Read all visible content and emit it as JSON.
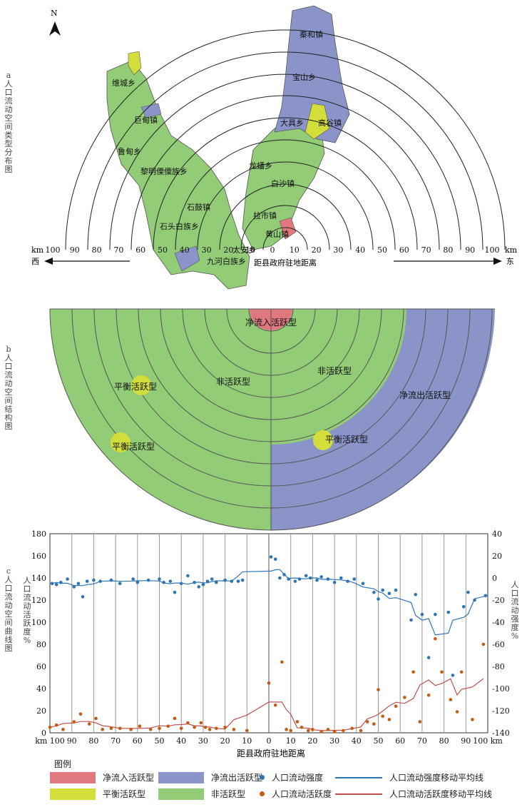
{
  "panel_a": {
    "title": "a 人口流动空间类型分布图",
    "north": "N",
    "km_left": "km",
    "km_right": "km",
    "west": "西",
    "east": "东",
    "axis_label": "距县政府驻地距离",
    "ticks": [
      "100",
      "90",
      "80",
      "70",
      "60",
      "50",
      "40",
      "30",
      "20",
      "10",
      "0",
      "10",
      "20",
      "30",
      "40",
      "50",
      "60",
      "70",
      "80",
      "90",
      "100"
    ],
    "towns": [
      {
        "name": "秦和镇"
      },
      {
        "name": "宝山乡"
      },
      {
        "name": "高谷镇"
      },
      {
        "name": "大具乡"
      },
      {
        "name": "维城乡"
      },
      {
        "name": "巨甸镇"
      },
      {
        "name": "鲁甸乡"
      },
      {
        "name": "黎明傈僳族乡"
      },
      {
        "name": "龙蟠乡"
      },
      {
        "name": "石鼓镇"
      },
      {
        "name": "拉市镇"
      },
      {
        "name": "白沙镇"
      },
      {
        "name": "石头白族乡"
      },
      {
        "name": "九河白族乡"
      },
      {
        "name": "太安乡"
      },
      {
        "name": "黄山镇"
      }
    ]
  },
  "panel_b": {
    "title": "b 人口流动空间结构图",
    "labels": {
      "inflow": "净流入活跃型",
      "inactive_left": "非活跃型",
      "inactive_right": "非活跃型",
      "outflow": "净流出活跃型",
      "balance_1": "平衡活跃型",
      "balance_2": "平衡活跃型",
      "balance_3": "平衡活跃型"
    }
  },
  "panel_c": {
    "title": "c 人口流动空间曲线图",
    "left_axis_label": "人口流动活跃度 %",
    "right_axis_label": "人口流动强度 %",
    "x_label": "距县政府驻地距离",
    "km": "km"
  },
  "chart_data": {
    "type": "scatter",
    "x_label": "距县政府驻地距离",
    "x_ticks": [
      "km 100",
      "90",
      "80",
      "70",
      "60",
      "50",
      "40",
      "30",
      "20",
      "10",
      "0",
      "10",
      "20",
      "30",
      "40",
      "50",
      "60",
      "70",
      "80",
      "90",
      "100 km"
    ],
    "left_axis": {
      "label": "人口流动活跃度 %",
      "range": [
        0,
        180
      ],
      "ticks": [
        0,
        20,
        40,
        60,
        80,
        100,
        120,
        140,
        160,
        180
      ]
    },
    "right_axis": {
      "label": "人口流动强度 %",
      "range": [
        -140,
        40
      ],
      "ticks": [
        -140,
        -120,
        -100,
        -80,
        -60,
        -40,
        -20,
        0,
        20,
        40
      ]
    },
    "x_range": [
      -100,
      100
    ],
    "series": [
      {
        "name": "人口流动强度",
        "axis": "right",
        "color": "#2e75b6",
        "points": [
          [
            -99,
            -5
          ],
          [
            -97,
            -6
          ],
          [
            -95,
            -4
          ],
          [
            -92,
            -1
          ],
          [
            -89,
            -8
          ],
          [
            -87,
            -5
          ],
          [
            -85,
            -17
          ],
          [
            -83,
            -3
          ],
          [
            -80,
            -2
          ],
          [
            -77,
            -3
          ],
          [
            -72,
            -2
          ],
          [
            -68,
            -5
          ],
          [
            -62,
            -1
          ],
          [
            -60,
            -4
          ],
          [
            -55,
            -2
          ],
          [
            -50,
            -1
          ],
          [
            -48,
            -4
          ],
          [
            -45,
            -3
          ],
          [
            -43,
            -13
          ],
          [
            -40,
            -5
          ],
          [
            -37,
            2
          ],
          [
            -34,
            -4
          ],
          [
            -32,
            -8
          ],
          [
            -30,
            -6
          ],
          [
            -28,
            -3
          ],
          [
            -26,
            -1
          ],
          [
            -24,
            -4
          ],
          [
            -20,
            -2
          ],
          [
            -17,
            -3
          ],
          [
            -14,
            -3
          ],
          [
            -12,
            -2
          ],
          [
            1,
            19
          ],
          [
            3,
            17
          ],
          [
            5,
            0
          ],
          [
            7,
            3
          ],
          [
            9,
            -1
          ],
          [
            12,
            -3
          ],
          [
            14,
            -1
          ],
          [
            17,
            2
          ],
          [
            19,
            0
          ],
          [
            22,
            -2
          ],
          [
            24,
            1
          ],
          [
            27,
            -1
          ],
          [
            30,
            -4
          ],
          [
            33,
            0
          ],
          [
            36,
            -3
          ],
          [
            39,
            -1
          ],
          [
            43,
            -5
          ],
          [
            48,
            -13
          ],
          [
            50,
            -19
          ],
          [
            52,
            -11
          ],
          [
            55,
            -14
          ],
          [
            58,
            -11
          ],
          [
            65,
            -38
          ],
          [
            67,
            -15
          ],
          [
            70,
            -33
          ],
          [
            73,
            -72
          ],
          [
            76,
            -33
          ],
          [
            82,
            -31
          ],
          [
            84,
            -88
          ],
          [
            89,
            -26
          ],
          [
            91,
            -13
          ],
          [
            94,
            -20
          ],
          [
            99,
            -16
          ]
        ]
      },
      {
        "name": "人口流动活跃度",
        "axis": "left",
        "color": "#c55a11",
        "points": [
          [
            -100,
            5
          ],
          [
            -97,
            7
          ],
          [
            -94,
            3
          ],
          [
            -89,
            10
          ],
          [
            -86,
            17
          ],
          [
            -82,
            8
          ],
          [
            -79,
            13
          ],
          [
            -76,
            3
          ],
          [
            -72,
            4
          ],
          [
            -68,
            4
          ],
          [
            -63,
            3
          ],
          [
            -59,
            6
          ],
          [
            -54,
            3
          ],
          [
            -50,
            4
          ],
          [
            -46,
            6
          ],
          [
            -43,
            13
          ],
          [
            -40,
            4
          ],
          [
            -37,
            9
          ],
          [
            -34,
            5
          ],
          [
            -31,
            9
          ],
          [
            -29,
            5
          ],
          [
            -27,
            3
          ],
          [
            -24,
            4
          ],
          [
            -20,
            5
          ],
          [
            -16,
            3
          ],
          [
            -10,
            2
          ],
          [
            0,
            45
          ],
          [
            3,
            25
          ],
          [
            6,
            64
          ],
          [
            8,
            3
          ],
          [
            10,
            2
          ],
          [
            13,
            10
          ],
          [
            15,
            5
          ],
          [
            18,
            2
          ],
          [
            20,
            3
          ],
          [
            24,
            1
          ],
          [
            27,
            3
          ],
          [
            30,
            1
          ],
          [
            34,
            2
          ],
          [
            38,
            4
          ],
          [
            42,
            2
          ],
          [
            45,
            10
          ],
          [
            48,
            8
          ],
          [
            50,
            39
          ],
          [
            52,
            15
          ],
          [
            55,
            12
          ],
          [
            58,
            24
          ],
          [
            62,
            32
          ],
          [
            66,
            55
          ],
          [
            69,
            10
          ],
          [
            73,
            34
          ],
          [
            76,
            85
          ],
          [
            79,
            55
          ],
          [
            83,
            30
          ],
          [
            86,
            19
          ],
          [
            88,
            55
          ],
          [
            93,
            12
          ],
          [
            98,
            80
          ]
        ]
      }
    ],
    "lines": [
      {
        "name": "人口流动强度移动平均线",
        "axis": "right",
        "color": "#2e75b6"
      },
      {
        "name": "人口流动活跃度移动平均线",
        "axis": "left",
        "color": "#c0504d"
      }
    ]
  },
  "legend": {
    "title": "图例",
    "items": [
      {
        "label": "净流入活跃型",
        "color": "#e0787f"
      },
      {
        "label": "净流出活跃型",
        "color": "#8b94c9"
      },
      {
        "label": "人口流动强度",
        "color": "#2e75b6"
      },
      {
        "label": "人口流动强度移动平均线",
        "color": "#2e75b6"
      },
      {
        "label": "平衡活跃型",
        "color": "#d4de3a"
      },
      {
        "label": "非活跃型",
        "color": "#92cc77"
      },
      {
        "label": "人口流动活跃度",
        "color": "#c55a11"
      },
      {
        "label": "人口流动活跃度移动平均线",
        "color": "#c0504d"
      }
    ]
  },
  "colors": {
    "inflow": "#e0787f",
    "outflow": "#8b94c9",
    "balance": "#d4de3a",
    "inactive": "#92cc77"
  }
}
